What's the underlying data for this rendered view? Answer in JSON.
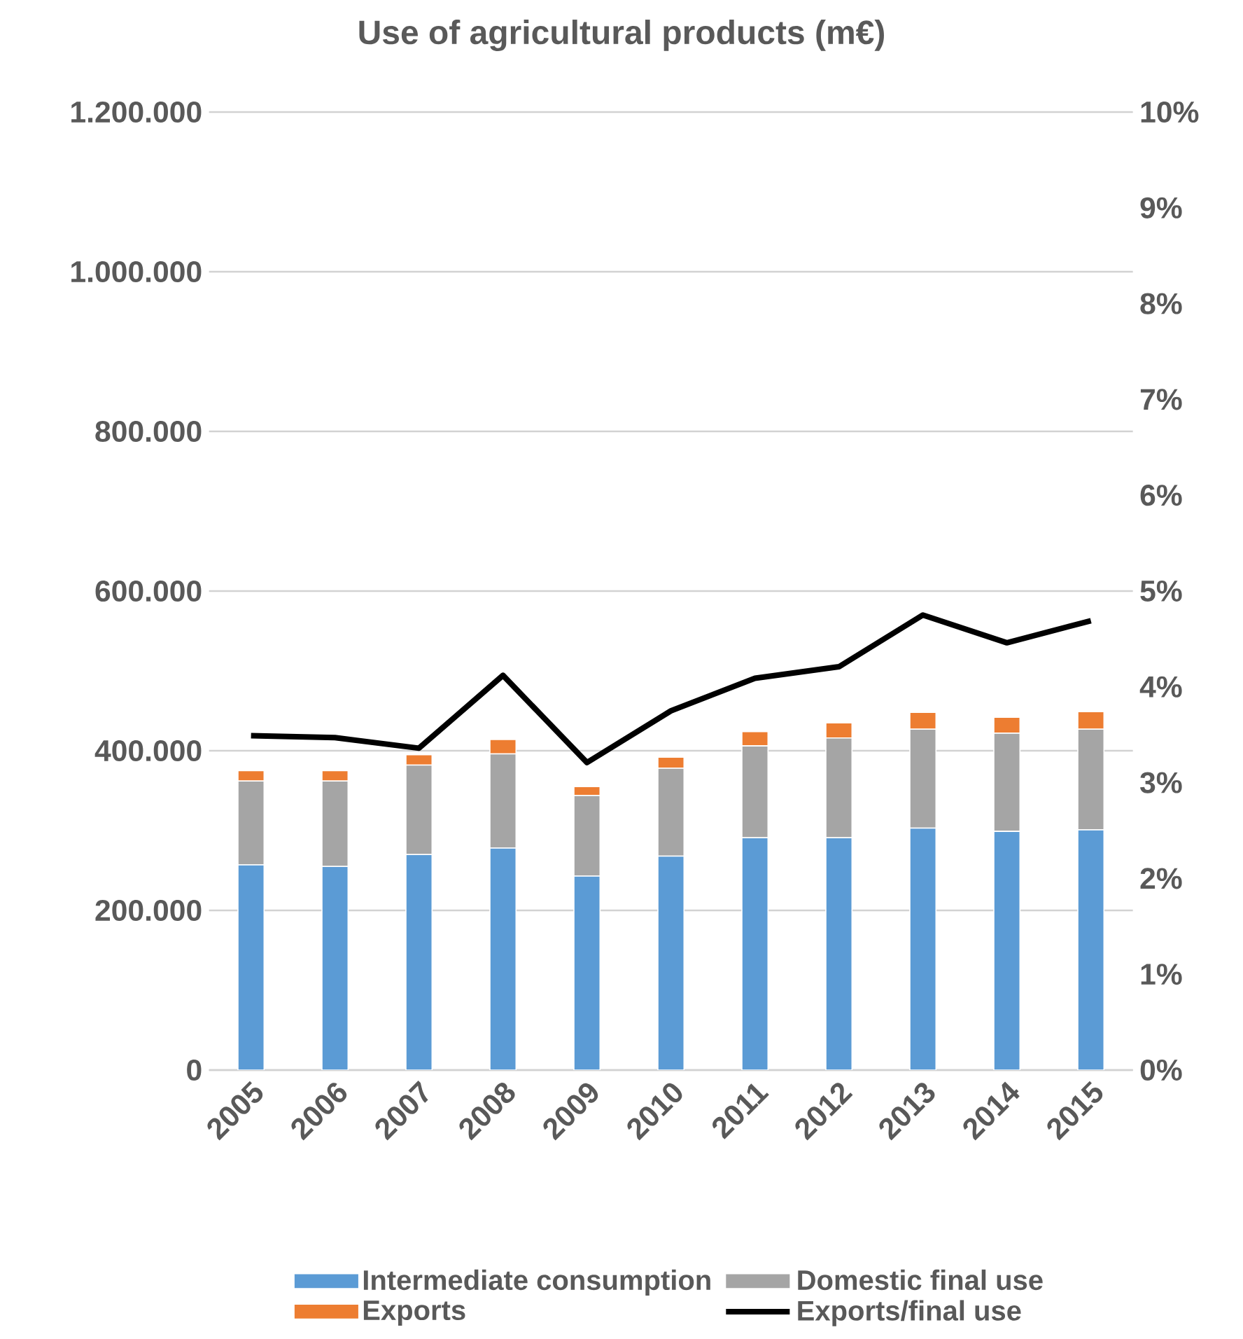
{
  "chart_data": {
    "type": "bar",
    "title": "Use of agricultural products (m€)",
    "stacked": true,
    "grid": "y",
    "legend": "bottom",
    "categories": [
      "2005",
      "2006",
      "2007",
      "2008",
      "2009",
      "2010",
      "2011",
      "2012",
      "2013",
      "2014",
      "2015"
    ],
    "ylim": [
      0,
      1200000
    ],
    "yticks": [
      0,
      {
        "value": 200000,
        "label": "200.000"
      },
      {
        "value": 400000,
        "label": "400.000"
      },
      {
        "value": 600000,
        "label": "600.000"
      },
      {
        "value": 800000,
        "label": "800.000"
      },
      {
        "value": 1000000,
        "label": "1.000.000"
      },
      {
        "value": 1200000,
        "label": "1.200.000"
      }
    ],
    "y2lim": [
      0,
      10
    ],
    "y2ticks": [
      {
        "value": 0,
        "label": "0%"
      },
      {
        "value": 1,
        "label": "1%"
      },
      {
        "value": 2,
        "label": "2%"
      },
      {
        "value": 3,
        "label": "3%"
      },
      {
        "value": 4,
        "label": "4%"
      },
      {
        "value": 5,
        "label": "5%"
      },
      {
        "value": 6,
        "label": "6%"
      },
      {
        "value": 7,
        "label": "7%"
      },
      {
        "value": 8,
        "label": "8%"
      },
      {
        "value": 9,
        "label": "9%"
      },
      {
        "value": 10,
        "label": "10%"
      }
    ],
    "series": [
      {
        "name": "Intermediate consumption",
        "color": "#5b9bd5",
        "values": [
          257000,
          255000,
          270000,
          278000,
          243000,
          268000,
          291000,
          291000,
          303000,
          299000,
          301000
        ]
      },
      {
        "name": "Domestic final use",
        "color": "#a5a5a5",
        "values": [
          105000,
          107000,
          112000,
          118000,
          101000,
          110000,
          115000,
          125000,
          124000,
          123000,
          126000
        ]
      },
      {
        "name": "Exports",
        "color": "#ed7d31",
        "values": [
          13000,
          13000,
          13000,
          18000,
          11000,
          14000,
          18000,
          19000,
          21000,
          20000,
          22000
        ]
      },
      {
        "name": "Exports/final use",
        "color": "#000000",
        "type": "line",
        "axis": "y2",
        "values": [
          3.49,
          3.47,
          3.36,
          4.12,
          3.21,
          3.75,
          4.09,
          4.21,
          4.75,
          4.46,
          4.69
        ]
      }
    ]
  }
}
